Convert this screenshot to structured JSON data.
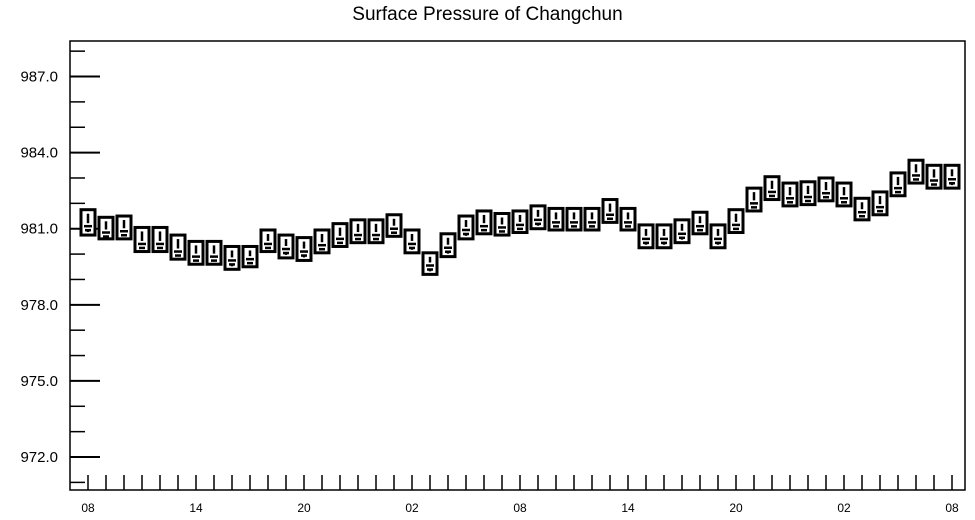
{
  "chart_data": {
    "type": "box",
    "title": "Surface Pressure of Changchun",
    "xlabel": "",
    "ylabel": "",
    "ylim": [
      970.7,
      988.4
    ],
    "yticks": [
      "987.0",
      "984.0",
      "981.0",
      "978.0",
      "975.0",
      "972.0"
    ],
    "ytick_values": [
      987.0,
      984.0,
      981.0,
      978.0,
      975.0,
      972.0
    ],
    "xticks": [
      "08",
      "14",
      "20",
      "02",
      "08",
      "14",
      "20",
      "02",
      "08"
    ],
    "xtick_steps": [
      0,
      6,
      12,
      18,
      24,
      30,
      36,
      42,
      48
    ],
    "x_step_count": 48,
    "grid": false,
    "series": [
      {
        "boxes": [
          {
            "x": 0,
            "low": 980.75,
            "high": 981.75,
            "median": 981.1,
            "whisker_low": 980.75
          },
          {
            "x": 1,
            "low": 980.6,
            "high": 981.45,
            "median": 980.85,
            "whisker_low": 980.6
          },
          {
            "x": 2,
            "low": 980.6,
            "high": 981.5,
            "median": 980.9,
            "whisker_low": 980.6
          },
          {
            "x": 3,
            "low": 980.1,
            "high": 981.05,
            "median": 980.4,
            "whisker_low": 980.1
          },
          {
            "x": 4,
            "low": 980.1,
            "high": 981.05,
            "median": 980.4,
            "whisker_low": 980.1
          },
          {
            "x": 5,
            "low": 979.8,
            "high": 980.75,
            "median": 980.1,
            "whisker_low": 979.8
          },
          {
            "x": 6,
            "low": 979.6,
            "high": 980.5,
            "median": 979.9,
            "whisker_low": 979.6
          },
          {
            "x": 7,
            "low": 979.6,
            "high": 980.5,
            "median": 979.9,
            "whisker_low": 979.6
          },
          {
            "x": 8,
            "low": 979.4,
            "high": 980.3,
            "median": 979.75,
            "whisker_low": 979.4
          },
          {
            "x": 9,
            "low": 979.5,
            "high": 980.3,
            "median": 979.8,
            "whisker_low": 979.5
          },
          {
            "x": 10,
            "low": 980.1,
            "high": 980.95,
            "median": 980.4,
            "whisker_low": 980.1
          },
          {
            "x": 11,
            "low": 979.85,
            "high": 980.75,
            "median": 980.2,
            "whisker_low": 979.85
          },
          {
            "x": 12,
            "low": 979.75,
            "high": 980.65,
            "median": 980.1,
            "whisker_low": 979.75
          },
          {
            "x": 13,
            "low": 980.05,
            "high": 980.95,
            "median": 980.35,
            "whisker_low": 980.05
          },
          {
            "x": 14,
            "low": 980.3,
            "high": 981.2,
            "median": 980.6,
            "whisker_low": 980.3
          },
          {
            "x": 15,
            "low": 980.45,
            "high": 981.35,
            "median": 980.75,
            "whisker_low": 980.45
          },
          {
            "x": 16,
            "low": 980.45,
            "high": 981.35,
            "median": 980.75,
            "whisker_low": 980.45
          },
          {
            "x": 17,
            "low": 980.7,
            "high": 981.55,
            "median": 981.0,
            "whisker_low": 980.7
          },
          {
            "x": 18,
            "low": 980.05,
            "high": 980.95,
            "median": 980.4,
            "whisker_low": 980.05
          },
          {
            "x": 19,
            "low": 979.2,
            "high": 980.05,
            "median": 979.55,
            "whisker_low": 979.2
          },
          {
            "x": 20,
            "low": 979.9,
            "high": 980.8,
            "median": 980.25,
            "whisker_low": 979.9
          },
          {
            "x": 21,
            "low": 980.6,
            "high": 981.5,
            "median": 980.95,
            "whisker_low": 980.6
          },
          {
            "x": 22,
            "low": 980.8,
            "high": 981.7,
            "median": 981.1,
            "whisker_low": 980.8
          },
          {
            "x": 23,
            "low": 980.75,
            "high": 981.6,
            "median": 981.05,
            "whisker_low": 980.75
          },
          {
            "x": 24,
            "low": 980.85,
            "high": 981.7,
            "median": 981.15,
            "whisker_low": 980.85
          },
          {
            "x": 25,
            "low": 981.0,
            "high": 981.9,
            "median": 981.35,
            "whisker_low": 981.0
          },
          {
            "x": 26,
            "low": 980.95,
            "high": 981.8,
            "median": 981.25,
            "whisker_low": 980.95
          },
          {
            "x": 27,
            "low": 980.95,
            "high": 981.8,
            "median": 981.25,
            "whisker_low": 980.95
          },
          {
            "x": 28,
            "low": 980.95,
            "high": 981.8,
            "median": 981.25,
            "whisker_low": 980.95
          },
          {
            "x": 29,
            "low": 981.25,
            "high": 982.15,
            "median": 981.55,
            "whisker_low": 981.25
          },
          {
            "x": 30,
            "low": 980.95,
            "high": 981.8,
            "median": 981.25,
            "whisker_low": 980.95
          },
          {
            "x": 31,
            "low": 980.25,
            "high": 981.15,
            "median": 980.6,
            "whisker_low": 980.25
          },
          {
            "x": 32,
            "low": 980.25,
            "high": 981.15,
            "median": 980.6,
            "whisker_low": 980.25
          },
          {
            "x": 33,
            "low": 980.45,
            "high": 981.35,
            "median": 980.8,
            "whisker_low": 980.45
          },
          {
            "x": 34,
            "low": 980.8,
            "high": 981.65,
            "median": 981.1,
            "whisker_low": 980.8
          },
          {
            "x": 35,
            "low": 980.25,
            "high": 981.15,
            "median": 980.6,
            "whisker_low": 980.25
          },
          {
            "x": 36,
            "low": 980.85,
            "high": 981.75,
            "median": 981.15,
            "whisker_low": 980.85
          },
          {
            "x": 37,
            "low": 981.7,
            "high": 982.6,
            "median": 982.0,
            "whisker_low": 981.7
          },
          {
            "x": 38,
            "low": 982.15,
            "high": 983.05,
            "median": 982.45,
            "whisker_low": 982.15
          },
          {
            "x": 39,
            "low": 981.9,
            "high": 982.8,
            "median": 982.2,
            "whisker_low": 981.9
          },
          {
            "x": 40,
            "low": 981.95,
            "high": 982.85,
            "median": 982.25,
            "whisker_low": 981.95
          },
          {
            "x": 41,
            "low": 982.1,
            "high": 983.0,
            "median": 982.4,
            "whisker_low": 982.1
          },
          {
            "x": 42,
            "low": 981.9,
            "high": 982.8,
            "median": 982.2,
            "whisker_low": 981.9
          },
          {
            "x": 43,
            "low": 981.35,
            "high": 982.2,
            "median": 981.65,
            "whisker_low": 981.35
          },
          {
            "x": 44,
            "low": 981.55,
            "high": 982.45,
            "median": 981.85,
            "whisker_low": 981.55
          },
          {
            "x": 45,
            "low": 982.3,
            "high": 983.2,
            "median": 982.6,
            "whisker_low": 982.3
          },
          {
            "x": 46,
            "low": 982.8,
            "high": 983.7,
            "median": 983.1,
            "whisker_low": 982.8
          },
          {
            "x": 47,
            "low": 982.6,
            "high": 983.5,
            "median": 982.9,
            "whisker_low": 982.6
          },
          {
            "x": 48,
            "low": 982.6,
            "high": 983.5,
            "median": 982.95,
            "whisker_low": 982.6
          }
        ]
      }
    ]
  }
}
